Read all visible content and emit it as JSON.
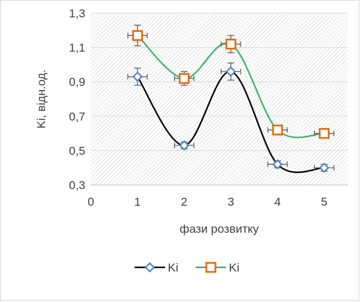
{
  "chart_data": {
    "type": "line",
    "xlabel": "фази розвитку",
    "ylabel": "Ki, відн.од.",
    "xlim": [
      0,
      5.5
    ],
    "ylim": [
      0.3,
      1.3
    ],
    "xticks": [
      "0",
      "1",
      "2",
      "3",
      "4",
      "5"
    ],
    "yticks": [
      "0,3",
      "0,5",
      "0,7",
      "0,9",
      "1,1",
      "1,3"
    ],
    "grid": "horizontal",
    "plot_background": "hatched",
    "legend_position": "bottom",
    "smooth": true,
    "series": [
      {
        "name": "Ki",
        "color": "#000000",
        "marker": "diamond",
        "marker_color": "#4a7ebb",
        "x": [
          1,
          2,
          3,
          4,
          5
        ],
        "y": [
          0.93,
          0.53,
          0.96,
          0.42,
          0.4
        ],
        "error": [
          0.05,
          0.02,
          0.05,
          0.02,
          0.02
        ]
      },
      {
        "name": "Ki",
        "color": "#3cb371",
        "marker": "square",
        "marker_color": "#e36c0a",
        "x": [
          1,
          2,
          3,
          4,
          5
        ],
        "y": [
          1.17,
          0.92,
          1.12,
          0.62,
          0.6
        ],
        "error": [
          0.06,
          0.04,
          0.05,
          0.02,
          0.02
        ]
      }
    ]
  }
}
